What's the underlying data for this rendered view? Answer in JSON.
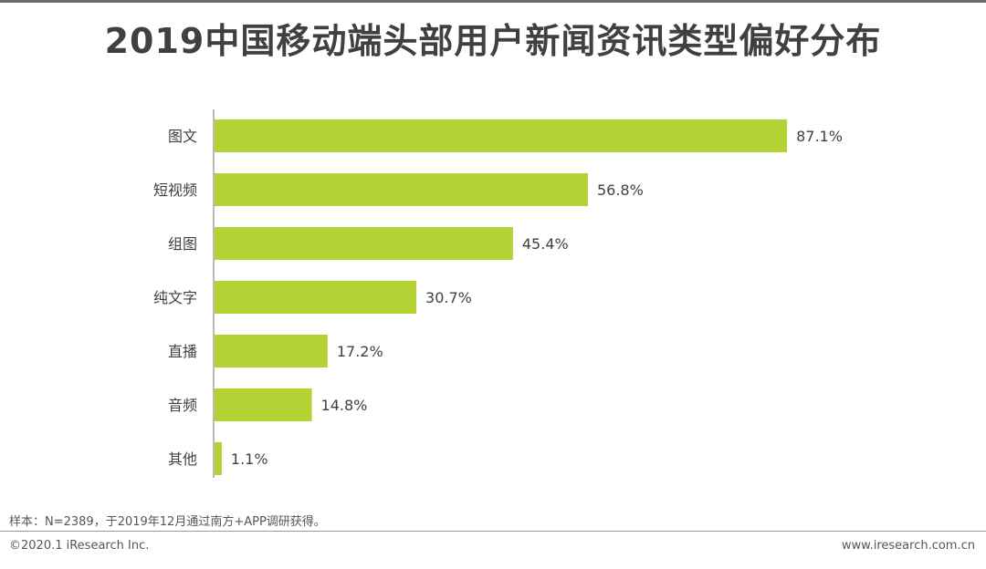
{
  "header": {
    "title": "2019中国移动端头部用户新闻资讯类型偏好分布"
  },
  "footer": {
    "note": "样本：N=2389，于2019年12月通过南方+APP调研获得。",
    "copyright": "©2020.1 iResearch Inc.",
    "website": "www.iresearch.com.cn"
  },
  "colors": {
    "bar": "#b3d334",
    "axis": "#8c8c8c",
    "text": "#404040"
  },
  "chart_data": {
    "type": "bar",
    "orientation": "horizontal",
    "title": "2019中国移动端头部用户新闻资讯类型偏好分布",
    "categories": [
      "图文",
      "短视频",
      "组图",
      "纯文字",
      "直播",
      "音频",
      "其他"
    ],
    "values": [
      87.1,
      56.8,
      45.4,
      30.7,
      17.2,
      14.8,
      1.1
    ],
    "value_labels": [
      "87.1%",
      "56.8%",
      "45.4%",
      "30.7%",
      "17.2%",
      "14.8%",
      "1.1%"
    ],
    "xlim": [
      0,
      100
    ],
    "grid": false,
    "legend": "none"
  }
}
